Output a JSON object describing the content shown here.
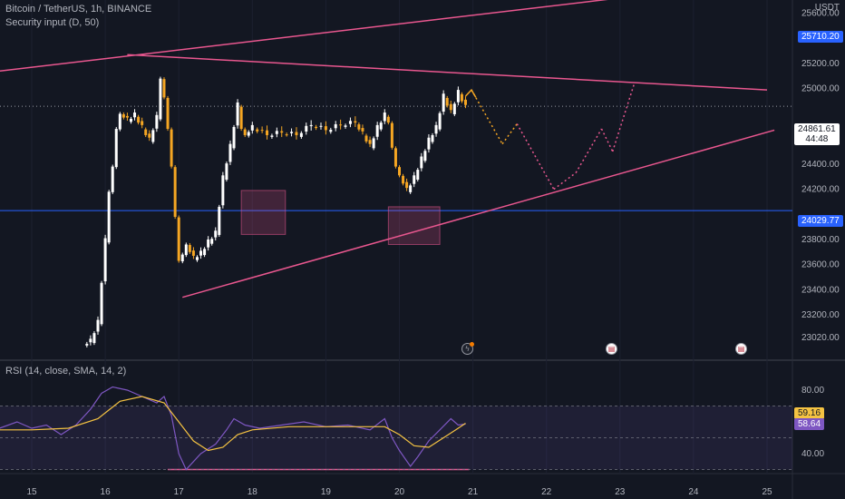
{
  "header": {
    "title": "Bitcoin / TetherUS, 1h, BINANCE",
    "subtitle": "Security input (D, 50)",
    "currency": "USDT"
  },
  "price_axis": {
    "labels": [
      "25400.00",
      "25200.00",
      "25000.00",
      "24600.00",
      "24400.00",
      "24200.00",
      "23800.00",
      "23600.00",
      "23400.00",
      "23200.00",
      "23020.00"
    ],
    "label_values": [
      25400,
      25200,
      25000,
      24600,
      24400,
      24200,
      23800,
      23600,
      23400,
      23200,
      23020
    ],
    "price_label_25800": "25800.00",
    "price_label_25600": "25600.00",
    "level_upper": "25710.20",
    "level_lower": "24029.77",
    "last_price": "24861.61",
    "countdown": "44:48"
  },
  "rsi": {
    "legend": "RSI (14, close, SMA, 14, 2)",
    "axis_labels": [
      "80.00",
      "40.00"
    ],
    "axis_values": [
      80,
      40
    ],
    "rsi_value": "58.64",
    "sma_value": "59.16"
  },
  "time_axis": {
    "labels": [
      "15",
      "16",
      "17",
      "18",
      "19",
      "20",
      "21",
      "22",
      "23",
      "24",
      "25"
    ]
  },
  "colors": {
    "background": "#131722",
    "up_candle": "#ffffff",
    "down_candle": "#f5a623",
    "trendline": "#e9578f",
    "horizontal_level": "#2962ff",
    "rsi_line": "#7e57c2",
    "rsi_sma": "#f5c342",
    "rsi_band": "#7e57c2",
    "box_fill": "#e9578f"
  },
  "events": [
    "bolt-icon",
    "us-flag-icon",
    "us-flag-icon"
  ],
  "chart_data": {
    "type": "candlestick",
    "symbol": "Bitcoin / TetherUS",
    "interval": "1h",
    "exchange": "BINANCE",
    "x_unit": "day of month",
    "ylim": [
      22980,
      25920
    ],
    "horizontal_levels": [
      25710.2,
      24029.77
    ],
    "close_series": [
      [
        15.7,
        22980
      ],
      [
        15.8,
        23000
      ],
      [
        15.9,
        23150
      ],
      [
        16.0,
        23800
      ],
      [
        16.05,
        24200
      ],
      [
        16.1,
        24400
      ],
      [
        16.15,
        24700
      ],
      [
        16.2,
        24820
      ],
      [
        16.3,
        24760
      ],
      [
        16.4,
        24800
      ],
      [
        16.5,
        24700
      ],
      [
        16.6,
        24600
      ],
      [
        16.7,
        24780
      ],
      [
        16.75,
        25100
      ],
      [
        16.8,
        24950
      ],
      [
        16.85,
        24700
      ],
      [
        16.9,
        24400
      ],
      [
        16.95,
        24000
      ],
      [
        17.0,
        23650
      ],
      [
        17.05,
        23700
      ],
      [
        17.1,
        23780
      ],
      [
        17.2,
        23660
      ],
      [
        17.3,
        23700
      ],
      [
        17.4,
        23790
      ],
      [
        17.5,
        23860
      ],
      [
        17.6,
        24300
      ],
      [
        17.7,
        24550
      ],
      [
        17.8,
        24880
      ],
      [
        17.85,
        24700
      ],
      [
        17.9,
        24650
      ],
      [
        18.0,
        24700
      ],
      [
        18.2,
        24640
      ],
      [
        18.4,
        24660
      ],
      [
        18.6,
        24640
      ],
      [
        18.8,
        24720
      ],
      [
        19.0,
        24680
      ],
      [
        19.2,
        24720
      ],
      [
        19.4,
        24740
      ],
      [
        19.5,
        24650
      ],
      [
        19.6,
        24550
      ],
      [
        19.7,
        24700
      ],
      [
        19.8,
        24800
      ],
      [
        19.85,
        24750
      ],
      [
        19.9,
        24550
      ],
      [
        19.95,
        24400
      ],
      [
        20.0,
        24330
      ],
      [
        20.1,
        24200
      ],
      [
        20.2,
        24300
      ],
      [
        20.3,
        24450
      ],
      [
        20.4,
        24600
      ],
      [
        20.5,
        24700
      ],
      [
        20.6,
        24950
      ],
      [
        20.7,
        24820
      ],
      [
        20.8,
        24980
      ],
      [
        20.9,
        24860
      ]
    ],
    "trendlines": [
      {
        "from": [
          14.5,
          25140
        ],
        "to": [
          25.0,
          25860
        ]
      },
      {
        "from": [
          16.3,
          25270
        ],
        "to": [
          25.0,
          24990
        ]
      },
      {
        "from": [
          17.05,
          23340
        ],
        "to": [
          25.1,
          24670
        ]
      },
      {
        "from": [
          18.2,
          23800
        ],
        "to": [
          20.0,
          23800
        ]
      },
      {
        "from": [
          19.3,
          23200
        ],
        "to": [
          20.05,
          23200
        ]
      }
    ],
    "zones": [
      {
        "x": [
          17.85,
          18.45
        ],
        "y": [
          23840,
          24190
        ]
      },
      {
        "x": [
          19.85,
          20.55
        ],
        "y": [
          23760,
          24060
        ]
      }
    ],
    "projection": [
      [
        20.98,
        24990
      ],
      [
        21.4,
        24560
      ],
      [
        21.6,
        24720
      ],
      [
        22.1,
        24200
      ],
      [
        22.4,
        24330
      ],
      [
        22.75,
        24680
      ],
      [
        22.9,
        24500
      ],
      [
        23.2,
        25050
      ]
    ],
    "rsi_series": [
      [
        14.5,
        55
      ],
      [
        14.8,
        60
      ],
      [
        15.0,
        56
      ],
      [
        15.2,
        58
      ],
      [
        15.4,
        52
      ],
      [
        15.6,
        58
      ],
      [
        15.8,
        68
      ],
      [
        15.95,
        78
      ],
      [
        16.1,
        82
      ],
      [
        16.3,
        80
      ],
      [
        16.5,
        76
      ],
      [
        16.7,
        72
      ],
      [
        16.8,
        76
      ],
      [
        16.9,
        64
      ],
      [
        17.0,
        40
      ],
      [
        17.1,
        30
      ],
      [
        17.3,
        40
      ],
      [
        17.5,
        46
      ],
      [
        17.65,
        55
      ],
      [
        17.75,
        62
      ],
      [
        17.9,
        58
      ],
      [
        18.1,
        56
      ],
      [
        18.4,
        58
      ],
      [
        18.7,
        60
      ],
      [
        19.0,
        57
      ],
      [
        19.3,
        58
      ],
      [
        19.6,
        55
      ],
      [
        19.8,
        62
      ],
      [
        19.9,
        50
      ],
      [
        20.0,
        42
      ],
      [
        20.15,
        32
      ],
      [
        20.25,
        38
      ],
      [
        20.4,
        48
      ],
      [
        20.55,
        55
      ],
      [
        20.7,
        62
      ],
      [
        20.8,
        58
      ],
      [
        20.9,
        58.64
      ]
    ],
    "rsi_sma_series": [
      [
        14.5,
        55
      ],
      [
        15.0,
        55
      ],
      [
        15.5,
        56
      ],
      [
        15.9,
        62
      ],
      [
        16.2,
        73
      ],
      [
        16.5,
        76
      ],
      [
        16.8,
        72
      ],
      [
        17.0,
        60
      ],
      [
        17.2,
        48
      ],
      [
        17.4,
        42
      ],
      [
        17.6,
        44
      ],
      [
        17.8,
        52
      ],
      [
        18.0,
        55
      ],
      [
        18.5,
        57
      ],
      [
        19.0,
        57
      ],
      [
        19.5,
        57
      ],
      [
        19.8,
        57
      ],
      [
        20.0,
        52
      ],
      [
        20.2,
        45
      ],
      [
        20.4,
        44
      ],
      [
        20.6,
        50
      ],
      [
        20.8,
        56
      ],
      [
        20.9,
        59.16
      ]
    ],
    "rsi_levels": [
      70,
      50,
      30
    ],
    "rsi_ylim": [
      22,
      100
    ]
  }
}
